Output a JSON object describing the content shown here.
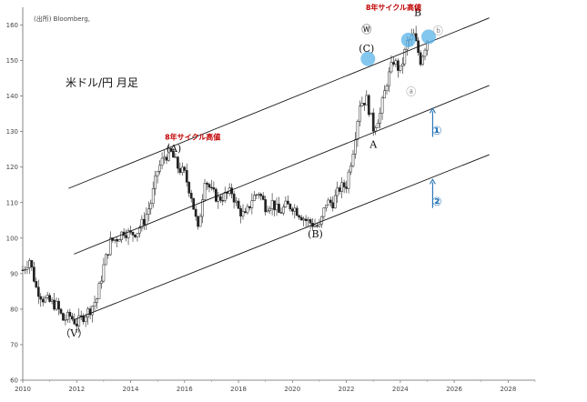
{
  "colors": {
    "candle": "#222222",
    "trendline": "#111111",
    "annotation_red": "#c00000",
    "arrow_blue": "#1f6fb5",
    "highlight": "#5ab4e8",
    "wave_gray": "#888888"
  },
  "chart_data": {
    "type": "line",
    "title": "米ドル/円 月足",
    "source": "(出所) Bloomberg,",
    "xlim": [
      2010,
      2029
    ],
    "ylim": [
      60,
      165
    ],
    "xticks": [
      "2010",
      "2012",
      "2014",
      "2016",
      "2018",
      "2020",
      "2022",
      "2024",
      "2026",
      "2028"
    ],
    "yticks": [
      "60",
      "70",
      "80",
      "90",
      "100",
      "110",
      "120",
      "130",
      "140",
      "150",
      "160"
    ],
    "price_series": {
      "name": "USD/JPY monthly close",
      "x": [
        2010.0,
        2010.25,
        2010.5,
        2010.75,
        2011.0,
        2011.25,
        2011.5,
        2011.75,
        2012.0,
        2012.25,
        2012.5,
        2012.75,
        2013.0,
        2013.25,
        2013.5,
        2013.75,
        2014.0,
        2014.25,
        2014.5,
        2014.75,
        2015.0,
        2015.25,
        2015.5,
        2015.75,
        2016.0,
        2016.25,
        2016.5,
        2016.75,
        2017.0,
        2017.25,
        2017.5,
        2017.75,
        2018.0,
        2018.25,
        2018.5,
        2018.75,
        2019.0,
        2019.25,
        2019.5,
        2019.75,
        2020.0,
        2020.25,
        2020.5,
        2020.75,
        2021.0,
        2021.25,
        2021.5,
        2021.75,
        2022.0,
        2022.25,
        2022.5,
        2022.75,
        2023.0,
        2023.25,
        2023.5,
        2023.75,
        2024.0,
        2024.25,
        2024.5,
        2024.75,
        2025.0
      ],
      "y": [
        91,
        94,
        86,
        83,
        82,
        81,
        77,
        78,
        76,
        78,
        80,
        83,
        92,
        99,
        100,
        102,
        101,
        102,
        105,
        110,
        119,
        123,
        124,
        120,
        118,
        112,
        102,
        117,
        113,
        111,
        112,
        113,
        108,
        106,
        111,
        113,
        109,
        110,
        107,
        109,
        109,
        107,
        105,
        104,
        103,
        110,
        110,
        114,
        115,
        125,
        138,
        139,
        131,
        135,
        144,
        150,
        147,
        155,
        157,
        150,
        156
      ]
    },
    "series": [
      {
        "name": "",
        "line": [
          [
            2011.7,
            114
          ],
          [
            2027.3,
            162
          ]
        ]
      },
      {
        "name": "",
        "line": [
          [
            2011.9,
            95.5
          ],
          [
            2027.3,
            143
          ]
        ]
      },
      {
        "name": "",
        "line": [
          [
            2011.9,
            77
          ],
          [
            2027.3,
            123.5
          ]
        ]
      }
    ],
    "annotations": [
      {
        "text": "8年サイクル高値",
        "x": 2016.3,
        "y": 127.8,
        "kind": "cycle"
      },
      {
        "text": "(A)",
        "x": 2015.6,
        "y": 124.3,
        "kind": "wave"
      },
      {
        "text": "(B)",
        "x": 2020.85,
        "y": 100.2,
        "kind": "wave"
      },
      {
        "text": "(C)",
        "x": 2022.75,
        "y": 152.5,
        "kind": "wave"
      },
      {
        "text": "Ⓦ",
        "x": 2022.75,
        "y": 157.8,
        "kind": "wave"
      },
      {
        "text": "A",
        "x": 2023.0,
        "y": 125.4,
        "kind": "wave"
      },
      {
        "text": "B",
        "x": 2024.65,
        "y": 162.6,
        "kind": "wave"
      },
      {
        "text": "ⓐ",
        "x": 2024.4,
        "y": 140.3,
        "kind": "wave-gray"
      },
      {
        "text": "ⓑ",
        "x": 2025.4,
        "y": 157.5,
        "kind": "wave-gray"
      },
      {
        "text": "8年サイクル高値",
        "x": 2023.75,
        "y": 164.2,
        "kind": "cycle"
      },
      {
        "text": "（V）",
        "x": 2011.9,
        "y": 72.3,
        "kind": "wave"
      },
      {
        "text": "①",
        "x": 2025.35,
        "y": 129.2,
        "kind": "num"
      },
      {
        "text": "②",
        "x": 2025.35,
        "y": 109.2,
        "kind": "num"
      }
    ],
    "highlights": [
      {
        "x": 2022.8,
        "y": 150.5
      },
      {
        "x": 2024.3,
        "y": 155.8
      },
      {
        "x": 2025.05,
        "y": 156.7
      }
    ],
    "arrows": [
      {
        "x": 2025.2,
        "from": 128.5,
        "to": 136.5
      },
      {
        "x": 2025.2,
        "from": 108.5,
        "to": 116.5
      }
    ]
  }
}
